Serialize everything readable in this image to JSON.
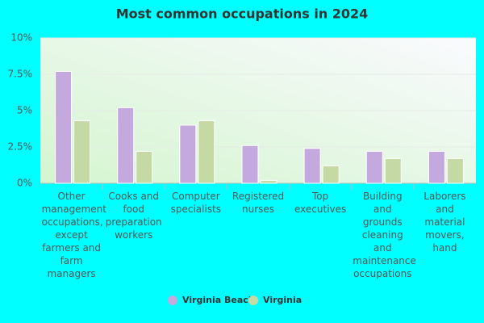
{
  "chart_data": {
    "type": "bar",
    "title": "Most common occupations in 2024",
    "categories": [
      "Other management occupations, except farmers and farm managers",
      "Cooks and food preparation workers",
      "Computer specialists",
      "Registered nurses",
      "Top executives",
      "Building and grounds cleaning and maintenance occupations",
      "Laborers and material movers, hand"
    ],
    "series": [
      {
        "name": "Virginia Beach",
        "color": "#c3a9dd",
        "values": [
          7.7,
          5.2,
          4.0,
          2.6,
          2.4,
          2.2,
          2.2
        ]
      },
      {
        "name": "Virginia",
        "color": "#c5d9a5",
        "values": [
          4.3,
          2.2,
          4.3,
          0.2,
          1.2,
          1.7,
          1.7
        ]
      }
    ],
    "ylim": [
      0,
      10
    ],
    "yticks": [
      {
        "value": 0,
        "label": "0%"
      },
      {
        "value": 2.5,
        "label": "2.5%"
      },
      {
        "value": 5,
        "label": "5%"
      },
      {
        "value": 7.5,
        "label": "7.5%"
      },
      {
        "value": 10,
        "label": "10%"
      }
    ],
    "grid": true
  }
}
